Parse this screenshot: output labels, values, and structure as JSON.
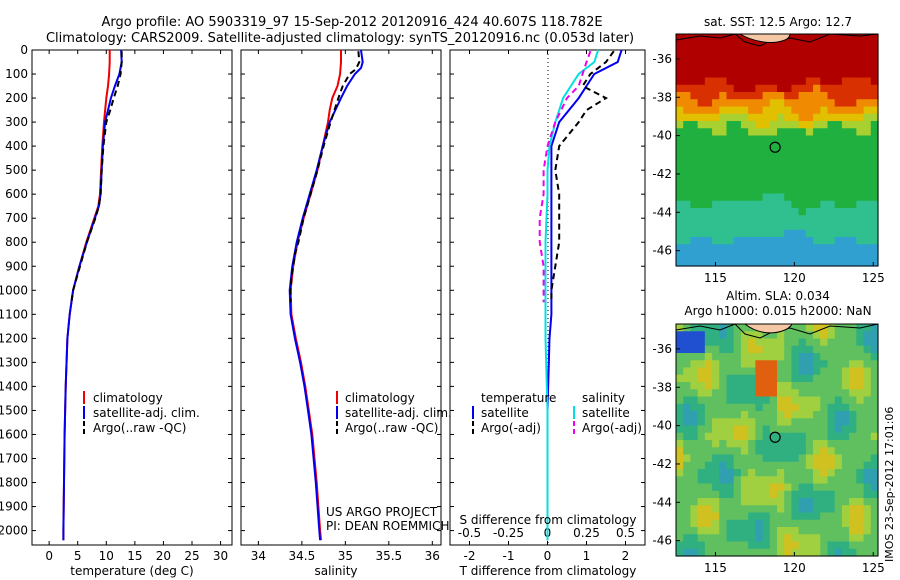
{
  "header": {
    "line1": "Argo profile: AO 5903319_97 15-Sep-2012 20120916_424 40.607S 118.782E",
    "line2": "Climatology: CARS2009. Satellite-adjusted climatology: synTS_20120916.nc (0.053d later)"
  },
  "chart_data": [
    {
      "type": "line",
      "xlabel": "temperature (deg C)",
      "ylabel": "",
      "xlim": [
        -3,
        32
      ],
      "ylim": [
        2060,
        0
      ],
      "xticks": [
        0,
        5,
        10,
        15,
        20,
        25,
        30
      ],
      "yticks": [
        0,
        100,
        200,
        300,
        400,
        500,
        600,
        700,
        800,
        900,
        1000,
        1100,
        1200,
        1300,
        1400,
        1500,
        1600,
        1700,
        1800,
        1900,
        2000
      ],
      "legend": [
        "climatology",
        "satellite-adj. clim.",
        "Argo(..raw -QC)"
      ],
      "series": [
        {
          "name": "climatology",
          "color": "#ee0000",
          "style": "solid",
          "depth": [
            0,
            50,
            100,
            150,
            200,
            300,
            400,
            500,
            600,
            650,
            700,
            800,
            900,
            1000,
            1100,
            1200,
            1400,
            1600,
            1800,
            2000,
            2040
          ],
          "values": [
            10.6,
            10.6,
            10.5,
            10.3,
            10.0,
            9.6,
            9.3,
            9.1,
            8.9,
            8.6,
            7.9,
            6.5,
            5.3,
            4.2,
            3.6,
            3.2,
            2.9,
            2.7,
            2.6,
            2.5,
            2.5
          ]
        },
        {
          "name": "satellite-adj. clim.",
          "color": "#0000ee",
          "style": "solid",
          "depth": [
            0,
            50,
            100,
            150,
            200,
            300,
            400,
            500,
            600,
            650,
            700,
            800,
            900,
            1000,
            1100,
            1200,
            1400,
            1600,
            1800,
            2000,
            2040
          ],
          "values": [
            12.6,
            12.7,
            12.3,
            11.5,
            10.8,
            9.8,
            9.4,
            9.2,
            9.0,
            8.7,
            8.0,
            6.6,
            5.3,
            4.2,
            3.6,
            3.2,
            2.9,
            2.7,
            2.6,
            2.5,
            2.5
          ]
        },
        {
          "name": "Argo(..raw -QC)",
          "color": "#000000",
          "style": "dashed",
          "depth": [
            5,
            50,
            100,
            150,
            200,
            250,
            300,
            400,
            500,
            600,
            650,
            700,
            800,
            900,
            1000,
            1050
          ],
          "values": [
            12.7,
            12.7,
            12.5,
            12.0,
            11.3,
            10.7,
            10.0,
            9.5,
            9.2,
            9.0,
            8.7,
            8.1,
            6.6,
            5.4,
            4.2,
            3.9
          ]
        }
      ],
      "annotation": []
    },
    {
      "type": "line",
      "xlabel": "salinity",
      "ylabel": "",
      "xlim": [
        33.8,
        36.1
      ],
      "ylim": [
        2060,
        0
      ],
      "xticks": [
        34,
        34.5,
        35,
        35.5,
        36
      ],
      "legend": [
        "climatology",
        "satellite-adj. clim.",
        "Argo(..raw -QC)"
      ],
      "series": [
        {
          "name": "climatology",
          "color": "#ee0000",
          "style": "solid",
          "depth": [
            0,
            50,
            100,
            150,
            200,
            250,
            300,
            400,
            500,
            600,
            700,
            800,
            900,
            1000,
            1100,
            1200,
            1300,
            1400,
            1500,
            1600,
            1800,
            2000,
            2040
          ],
          "values": [
            34.95,
            34.95,
            34.94,
            34.91,
            34.85,
            34.82,
            34.8,
            34.74,
            34.68,
            34.6,
            34.52,
            34.45,
            34.4,
            34.37,
            34.38,
            34.43,
            34.49,
            34.54,
            34.58,
            34.62,
            34.67,
            34.71,
            34.72
          ]
        },
        {
          "name": "satellite-adj. clim.",
          "color": "#0000ee",
          "style": "solid",
          "depth": [
            0,
            50,
            75,
            100,
            150,
            200,
            300,
            400,
            500,
            600,
            700,
            800,
            900,
            1000,
            1100,
            1200,
            1300,
            1400,
            1500,
            1600,
            1800,
            2000,
            2040
          ],
          "values": [
            35.18,
            35.2,
            35.18,
            35.11,
            35.02,
            34.95,
            34.82,
            34.74,
            34.67,
            34.59,
            34.51,
            34.44,
            34.39,
            34.36,
            34.37,
            34.42,
            34.48,
            34.53,
            34.57,
            34.61,
            34.66,
            34.7,
            34.71
          ]
        },
        {
          "name": "Argo(..raw -QC)",
          "color": "#000000",
          "style": "dashed",
          "depth": [
            5,
            50,
            80,
            100,
            150,
            200,
            300,
            400,
            500,
            600,
            700,
            800,
            850,
            900,
            950,
            1000,
            1050
          ],
          "values": [
            35.15,
            35.16,
            35.12,
            35.05,
            34.97,
            34.92,
            34.83,
            34.75,
            34.68,
            34.6,
            34.52,
            34.46,
            34.42,
            34.4,
            34.38,
            34.37,
            34.37
          ]
        }
      ],
      "annotation": [
        "US ARGO PROJECT",
        "PI: DEAN ROEMMICH"
      ]
    },
    {
      "type": "line",
      "xlabel": "T difference from climatology",
      "xlabel2": "S difference from climatology",
      "xlim": [
        -2.5,
        2.5
      ],
      "ylim": [
        2060,
        0
      ],
      "xticks": [
        -2,
        -1,
        0,
        1,
        2
      ],
      "xticks_s": [
        "-0.5",
        "-0.25",
        "0",
        "0.25",
        "0.5"
      ],
      "legend_temperature": {
        "title": "temperature",
        "items": [
          "satellite",
          "Argo(-adj)"
        ]
      },
      "legend_salinity": {
        "title": "salinity",
        "items": [
          "satellite",
          "Argo(-adj)"
        ]
      },
      "series": [
        {
          "name": "satellite",
          "group": "temperature",
          "color": "#0000ee",
          "style": "solid",
          "depth": [
            0,
            50,
            100,
            150,
            200,
            300,
            400,
            500,
            600,
            700,
            800,
            900,
            1000,
            1100,
            1200,
            1500,
            2000,
            2040
          ],
          "values": [
            1.9,
            1.8,
            1.2,
            1.0,
            0.8,
            0.3,
            0.1,
            0.1,
            0.1,
            0.1,
            0.1,
            0.1,
            0.1,
            0.1,
            0.05,
            0.0,
            0.0,
            0.0
          ]
        },
        {
          "name": "Argo(-adj)",
          "group": "temperature",
          "color": "#000000",
          "style": "dashed",
          "depth": [
            5,
            50,
            100,
            150,
            200,
            250,
            300,
            400,
            500,
            600,
            700,
            800,
            900,
            1000,
            1050
          ],
          "values": [
            1.7,
            1.5,
            1.1,
            0.9,
            1.5,
            1.0,
            0.8,
            0.3,
            0.2,
            0.3,
            0.3,
            0.3,
            0.2,
            0.1,
            0.1
          ]
        },
        {
          "name": "satellite",
          "group": "salinity",
          "color": "#00e0e0",
          "style": "solid",
          "depth": [
            0,
            50,
            100,
            150,
            200,
            300,
            400,
            500,
            600,
            800,
            1000,
            1200,
            1500,
            2000,
            2040
          ],
          "values": [
            1.3,
            1.2,
            0.8,
            0.6,
            0.4,
            0.2,
            0.05,
            0.0,
            0.0,
            -0.05,
            -0.05,
            -0.05,
            0.0,
            0.0,
            0.0
          ]
        },
        {
          "name": "Argo(-adj)",
          "group": "salinity",
          "color": "#ee00ee",
          "style": "dashed",
          "depth": [
            5,
            50,
            100,
            150,
            200,
            300,
            400,
            500,
            600,
            700,
            800,
            900,
            1000,
            1050
          ],
          "values": [
            1.1,
            1.0,
            0.9,
            0.8,
            0.5,
            0.2,
            0.0,
            -0.1,
            -0.1,
            -0.2,
            -0.2,
            -0.1,
            -0.1,
            -0.1
          ]
        }
      ]
    },
    {
      "type": "heatmap",
      "title": "sat. SST: 12.5 Argo: 12.7",
      "xlim": [
        112.5,
        125.3
      ],
      "ylim": [
        -46.8,
        -34.7
      ],
      "xticks": [
        115,
        120,
        125
      ],
      "yticks": [
        -36,
        -38,
        -40,
        -42,
        -44,
        -46
      ],
      "marker": {
        "lon": 118.782,
        "lat": -40.607
      }
    },
    {
      "type": "heatmap",
      "title_line1": "Altim. SLA: 0.034",
      "title_line2": "Argo h1000: 0.015 h2000: NaN",
      "xlim": [
        112.5,
        125.3
      ],
      "ylim": [
        -46.8,
        -34.7
      ],
      "xticks": [
        115,
        120,
        125
      ],
      "yticks": [
        -36,
        -38,
        -40,
        -42,
        -44,
        -46
      ],
      "marker": {
        "lon": 118.782,
        "lat": -40.607
      }
    }
  ],
  "side_label": "IMOS 23-Sep-2012 17:01:06"
}
